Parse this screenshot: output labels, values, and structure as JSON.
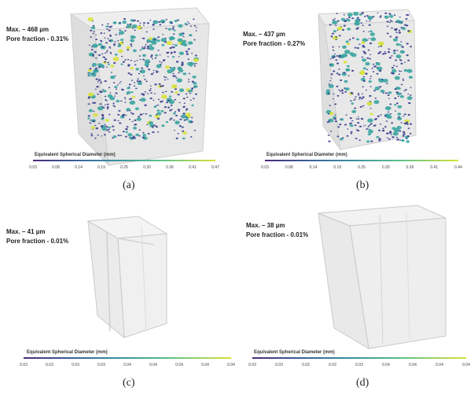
{
  "panels": [
    {
      "max_label": "Max. – 468  µm",
      "pore_label": "Pore fraction - 0.31%",
      "colorbar_title": "Equivalent Spherical Diameter (mm)",
      "ticks": [
        "0.03",
        "0.08",
        "0.14",
        "0.19",
        "0.25",
        "0.30",
        "0.36",
        "0.41",
        "0.47"
      ],
      "caption": "(a)"
    },
    {
      "max_label": "Max. – 437  µm",
      "pore_label": "Pore fraction - 0.27%",
      "colorbar_title": "Equivalent Spherical Diameter (mm)",
      "ticks": [
        "0.03",
        "0.08",
        "0.14",
        "0.19",
        "0.25",
        "0.30",
        "0.36",
        "0.41",
        "0.44"
      ],
      "caption": "(b)"
    },
    {
      "max_label": "Max. – 41  µm",
      "pore_label": "Pore fraction - 0.01%",
      "colorbar_title": "Equivalent Spherical Diameter (mm)",
      "ticks": [
        "0.03",
        "0.03",
        "0.03",
        "0.03",
        "0.04",
        "0.04",
        "0.04",
        "0.04",
        "0.04"
      ],
      "caption": "(c)"
    },
    {
      "max_label": "Max. – 38  µm",
      "pore_label": "Pore fraction - 0.01%",
      "colorbar_title": "Equivalent Spherical Diameter (mm)",
      "ticks": [
        "0.03",
        "0.03",
        "0.03",
        "0.03",
        "0.03",
        "0.04",
        "0.04",
        "0.04",
        "0.04"
      ],
      "caption": "(d)"
    }
  ],
  "colors": {
    "pore_low": "#3b3f8f",
    "pore_mid": "#3aa5a0",
    "pore_high": "#d8e23a"
  }
}
